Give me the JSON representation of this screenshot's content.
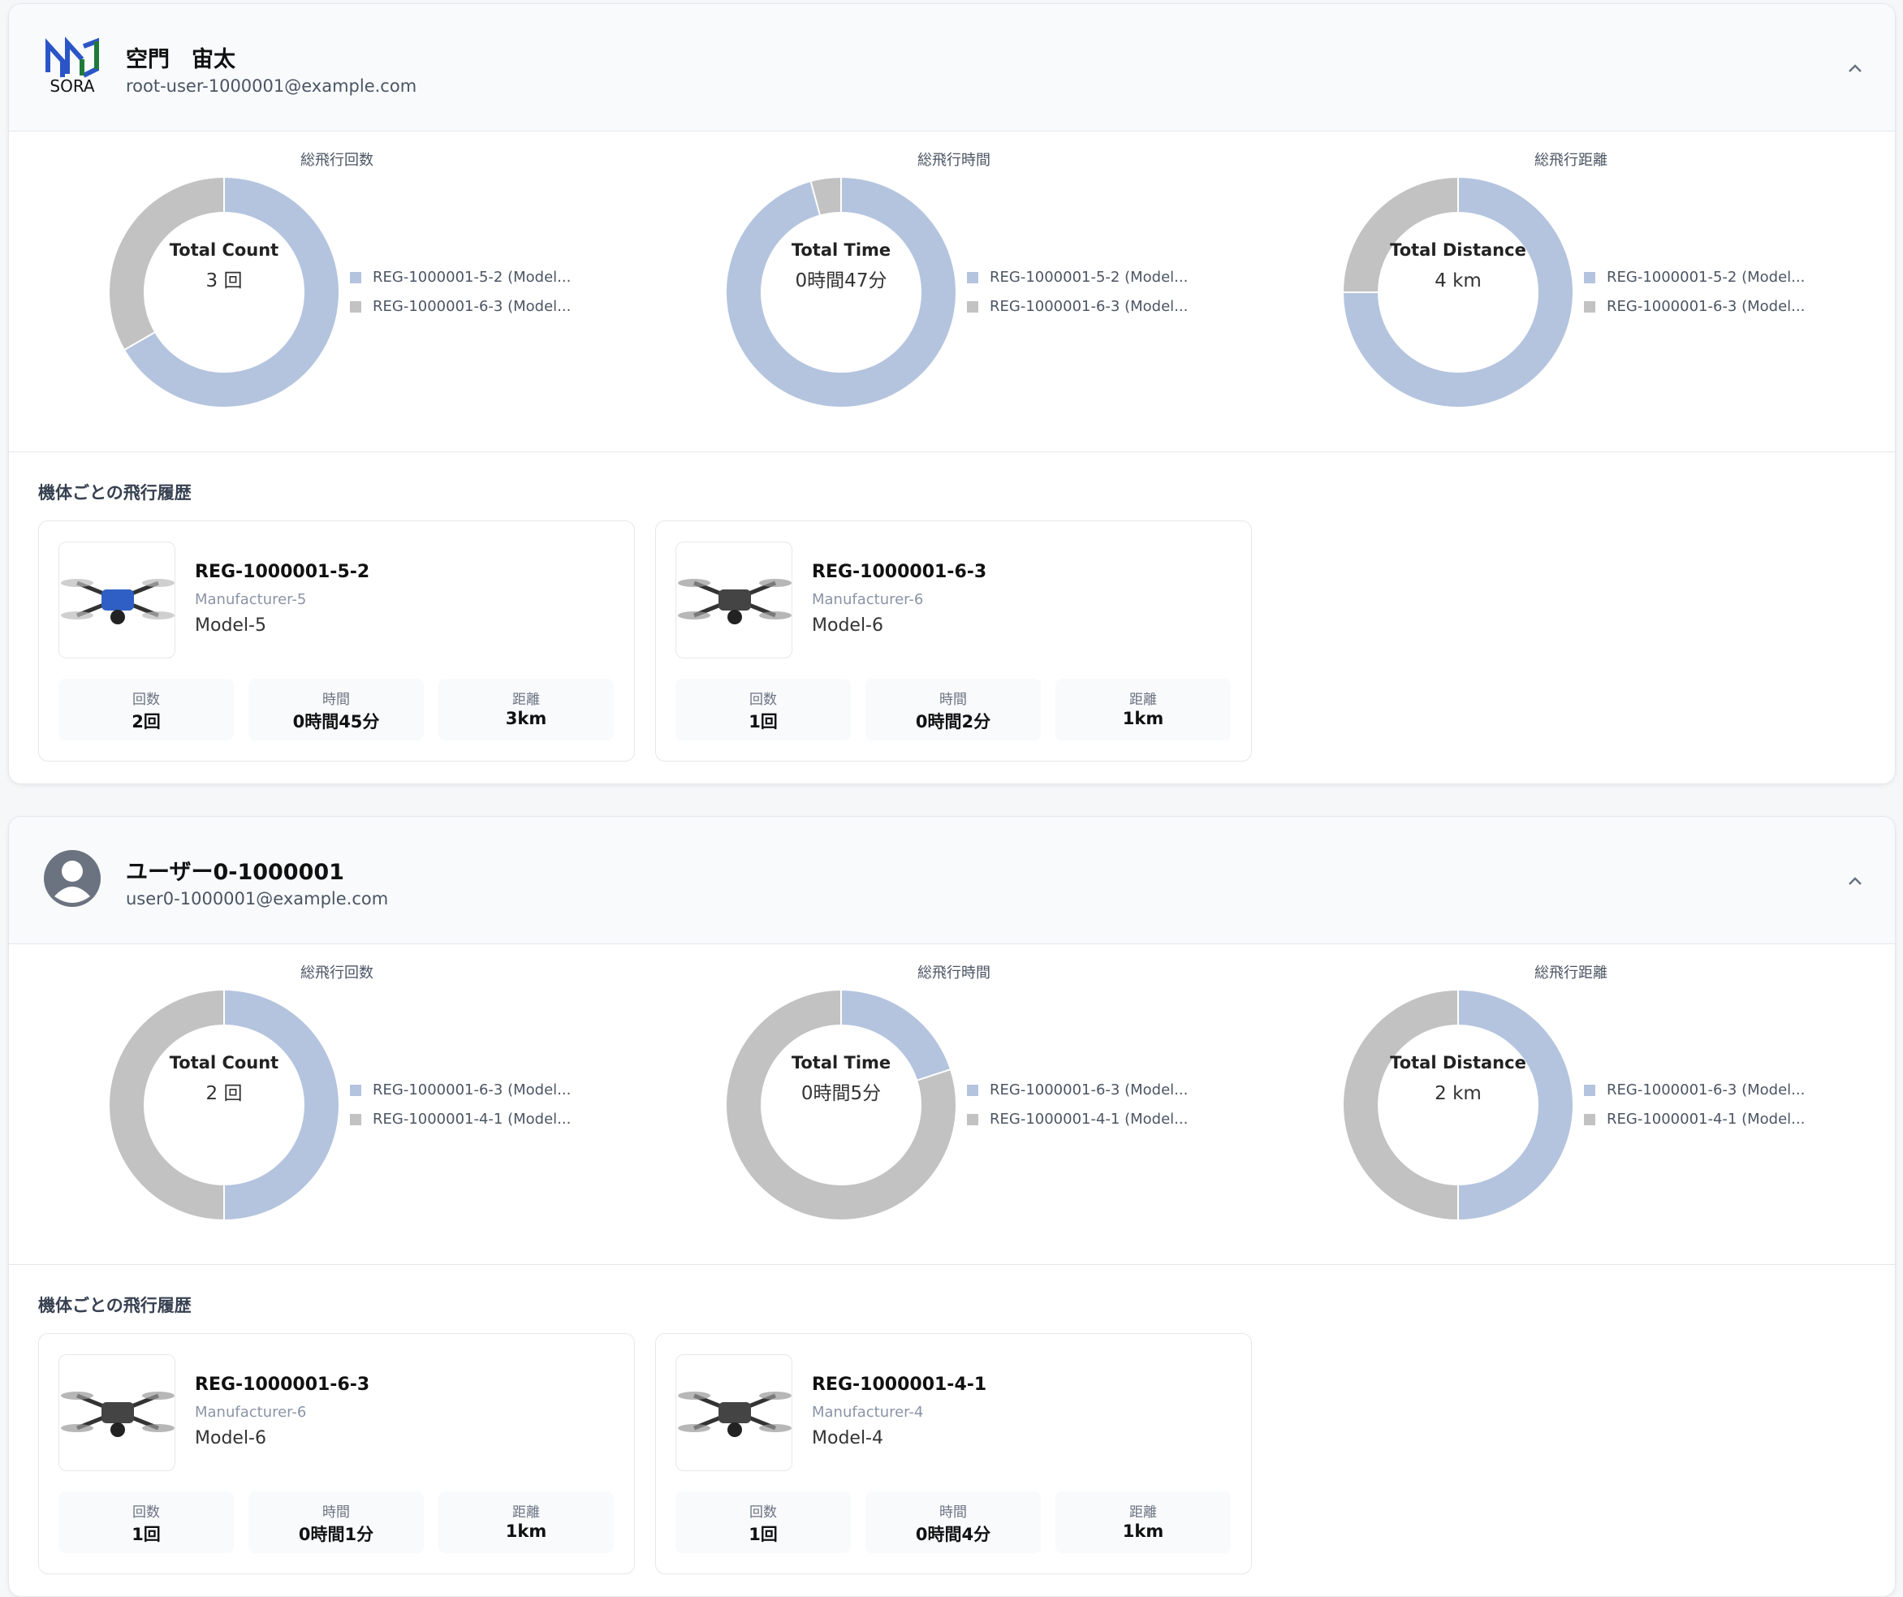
{
  "users": [
    {
      "name": "空門　宙太",
      "email": "root-user-1000001@example.com",
      "logo_text": "SORA",
      "charts": [
        {
          "type": "pie",
          "title": "総飛行回数",
          "center_label": "Total Count",
          "center_value": "3 回",
          "categories": [
            "REG-1000001-5-2 (Model...",
            "REG-1000001-6-3 (Model..."
          ],
          "colors": [
            "#b4c4de",
            "#c2c2c2"
          ],
          "values": [
            2,
            1
          ]
        },
        {
          "type": "pie",
          "title": "総飛行時間",
          "center_label": "Total Time",
          "center_value": "0時間47分",
          "categories": [
            "REG-1000001-5-2 (Model...",
            "REG-1000001-6-3 (Model..."
          ],
          "colors": [
            "#b4c4de",
            "#c2c2c2"
          ],
          "values": [
            45,
            2
          ]
        },
        {
          "type": "pie",
          "title": "総飛行距離",
          "center_label": "Total Distance",
          "center_value": "4 km",
          "categories": [
            "REG-1000001-5-2 (Model...",
            "REG-1000001-6-3 (Model..."
          ],
          "colors": [
            "#b4c4de",
            "#c2c2c2"
          ],
          "values": [
            3,
            1
          ]
        }
      ],
      "section_title": "機体ごとの飛行履歴",
      "aircraft": [
        {
          "registration": "REG-1000001-5-2",
          "manufacturer": "Manufacturer-5",
          "model": "Model-5",
          "stats": [
            {
              "label": "回数",
              "value": "2回"
            },
            {
              "label": "時間",
              "value": "0時間45分"
            },
            {
              "label": "距離",
              "value": "3km"
            }
          ]
        },
        {
          "registration": "REG-1000001-6-3",
          "manufacturer": "Manufacturer-6",
          "model": "Model-6",
          "stats": [
            {
              "label": "回数",
              "value": "1回"
            },
            {
              "label": "時間",
              "value": "0時間2分"
            },
            {
              "label": "距離",
              "value": "1km"
            }
          ]
        }
      ]
    },
    {
      "name": "ユーザー0-1000001",
      "email": "user0-1000001@example.com",
      "charts": [
        {
          "type": "pie",
          "title": "総飛行回数",
          "center_label": "Total Count",
          "center_value": "2 回",
          "categories": [
            "REG-1000001-6-3 (Model...",
            "REG-1000001-4-1 (Model..."
          ],
          "colors": [
            "#b4c4de",
            "#c2c2c2"
          ],
          "values": [
            1,
            1
          ]
        },
        {
          "type": "pie",
          "title": "総飛行時間",
          "center_label": "Total Time",
          "center_value": "0時間5分",
          "categories": [
            "REG-1000001-6-3 (Model...",
            "REG-1000001-4-1 (Model..."
          ],
          "colors": [
            "#b4c4de",
            "#c2c2c2"
          ],
          "values": [
            1,
            4
          ]
        },
        {
          "type": "pie",
          "title": "総飛行距離",
          "center_label": "Total Distance",
          "center_value": "2 km",
          "categories": [
            "REG-1000001-6-3 (Model...",
            "REG-1000001-4-1 (Model..."
          ],
          "colors": [
            "#b4c4de",
            "#c2c2c2"
          ],
          "values": [
            1,
            1
          ]
        }
      ],
      "section_title": "機体ごとの飛行履歴",
      "aircraft": [
        {
          "registration": "REG-1000001-6-3",
          "manufacturer": "Manufacturer-6",
          "model": "Model-6",
          "stats": [
            {
              "label": "回数",
              "value": "1回"
            },
            {
              "label": "時間",
              "value": "0時間1分"
            },
            {
              "label": "距離",
              "value": "1km"
            }
          ]
        },
        {
          "registration": "REG-1000001-4-1",
          "manufacturer": "Manufacturer-4",
          "model": "Model-4",
          "stats": [
            {
              "label": "回数",
              "value": "1回"
            },
            {
              "label": "時間",
              "value": "0時間4分"
            },
            {
              "label": "距離",
              "value": "1km"
            }
          ]
        }
      ]
    }
  ]
}
